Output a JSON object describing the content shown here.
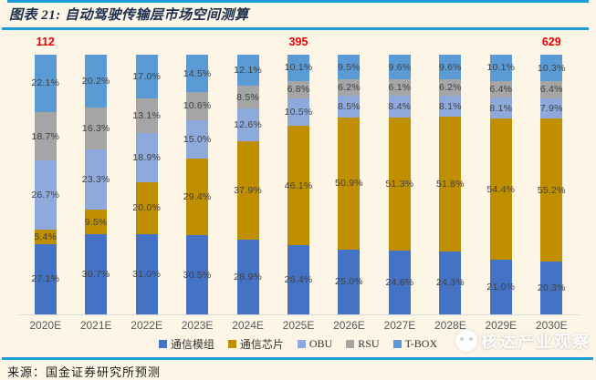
{
  "header": {
    "title": "图表 21: 自动驾驶传输层市场空间测算"
  },
  "chart_data": {
    "type": "bar",
    "variant": "stacked-100-percent",
    "title": "图表 21: 自动驾驶传输层市场空间测算",
    "categories": [
      "2020E",
      "2021E",
      "2022E",
      "2023E",
      "2024E",
      "2025E",
      "2026E",
      "2027E",
      "2028E",
      "2029E",
      "2030E"
    ],
    "series": [
      {
        "name": "通信模组",
        "color": "#4472C4",
        "values": [
          27.1,
          30.7,
          31.0,
          30.5,
          28.9,
          26.4,
          25.0,
          24.6,
          24.3,
          21.0,
          20.3
        ]
      },
      {
        "name": "通信芯片",
        "color": "#BF8F00",
        "values": [
          5.4,
          9.5,
          20.0,
          29.4,
          37.9,
          46.1,
          50.9,
          51.3,
          51.8,
          54.4,
          55.2
        ]
      },
      {
        "name": "OBU",
        "color": "#8EA9DB",
        "values": [
          26.7,
          23.3,
          18.9,
          15.0,
          12.6,
          10.5,
          8.5,
          8.4,
          8.1,
          8.1,
          7.9
        ]
      },
      {
        "name": "RSU",
        "color": "#A5A5A5",
        "values": [
          18.7,
          16.3,
          13.1,
          10.6,
          8.5,
          6.8,
          6.2,
          6.1,
          6.2,
          6.4,
          6.4
        ]
      },
      {
        "name": "T-BOX",
        "color": "#5B9BD5",
        "values": [
          22.1,
          20.2,
          17.0,
          14.5,
          12.1,
          10.1,
          9.5,
          9.6,
          9.6,
          10.1,
          10.3
        ]
      }
    ],
    "annotations": [
      {
        "category": "2020E",
        "text": "112"
      },
      {
        "category": "2025E",
        "text": "395"
      },
      {
        "category": "2030E",
        "text": "629"
      }
    ],
    "value_suffix": "%",
    "ylim": [
      0,
      100
    ],
    "grid": false,
    "legend_position": "bottom"
  },
  "footer": {
    "source": "来源：国金证券研究所预测"
  },
  "watermark": {
    "text": "核达产业观察"
  },
  "colors": {
    "background": "#FDF5E6",
    "rule_blue": "#1E9CD7",
    "annotation_red": "#EB0000",
    "axis_label": "#595959",
    "segment_label": "#3F3F3F"
  }
}
